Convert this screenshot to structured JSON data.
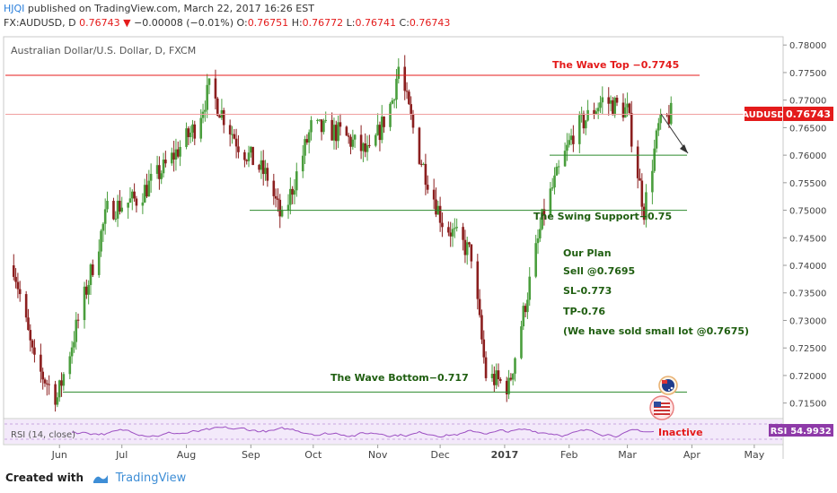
{
  "header": {
    "user": "HJQI",
    "published": "published on TradingView.com, March 22, 2017 16:26 EST",
    "symbol_line": "FX:AUDUSD, D",
    "last": "0.76743",
    "change": "−0.00008 (−0.01%)",
    "o_label": "O:",
    "o_value": "0.76751",
    "h_label": "H:",
    "h_value": "0.76772",
    "l_label": "L:",
    "l_value": "0.76741",
    "c_label": "C:",
    "c_value": "0.76743"
  },
  "footer": {
    "created_with": "Created with",
    "brand": "TradingView"
  },
  "chart_data": {
    "type": "candlestick",
    "title": "Australian Dollar/U.S. Dollar, D, FXCM",
    "ylim": [
      0.7125,
      0.7815
    ],
    "y_ticks": [
      "0.78000",
      "0.77500",
      "0.77000",
      "0.76500",
      "0.76000",
      "0.75500",
      "0.75000",
      "0.74500",
      "0.74000",
      "0.73500",
      "0.73000",
      "0.72500",
      "0.72000",
      "0.71500"
    ],
    "x_ticks": [
      "Jun",
      "Jul",
      "Aug",
      "Sep",
      "Oct",
      "Nov",
      "Dec",
      "2017",
      "Feb",
      "Mar",
      "Apr",
      "May"
    ],
    "price_path": [
      [
        "2016-05-10",
        0.74
      ],
      [
        "2016-05-20",
        0.722
      ],
      [
        "2016-05-31",
        0.716
      ],
      [
        "2016-06-10",
        0.73
      ],
      [
        "2016-06-24",
        0.75
      ],
      [
        "2016-07-08",
        0.752
      ],
      [
        "2016-07-22",
        0.758
      ],
      [
        "2016-08-05",
        0.765
      ],
      [
        "2016-08-12",
        0.772
      ],
      [
        "2016-08-26",
        0.762
      ],
      [
        "2016-09-09",
        0.756
      ],
      [
        "2016-09-16",
        0.748
      ],
      [
        "2016-09-30",
        0.765
      ],
      [
        "2016-10-14",
        0.764
      ],
      [
        "2016-10-28",
        0.76
      ],
      [
        "2016-11-08",
        0.77
      ],
      [
        "2016-11-11",
        0.776
      ],
      [
        "2016-11-21",
        0.76
      ],
      [
        "2016-12-02",
        0.748
      ],
      [
        "2016-12-16",
        0.742
      ],
      [
        "2016-12-23",
        0.72
      ],
      [
        "2017-01-03",
        0.718
      ],
      [
        "2017-01-12",
        0.735
      ],
      [
        "2017-01-20",
        0.75
      ],
      [
        "2017-02-03",
        0.764
      ],
      [
        "2017-02-17",
        0.77
      ],
      [
        "2017-03-01",
        0.768
      ],
      [
        "2017-03-09",
        0.75
      ],
      [
        "2017-03-16",
        0.765
      ],
      [
        "2017-03-22",
        0.7674
      ]
    ],
    "rsi": {
      "label": "RSI (14, close)",
      "value": "54.9932",
      "tag": "RSI"
    },
    "last_price": {
      "label": "AUDUSD",
      "value": "0.76743",
      "price": 0.76743
    },
    "levels": [
      {
        "name": "The Wave Top",
        "price": 0.7745,
        "label": "The Wave Top −0.7745",
        "color": "#e41b1b"
      },
      {
        "name": "The Swing Support",
        "price": 0.75,
        "label": "The Swing Support−0.75",
        "color": "#2b8a2b"
      },
      {
        "name": "The Wave Bottom",
        "price": 0.717,
        "label": "The Wave Bottom−0.717",
        "color": "#2b8a2b"
      },
      {
        "name": "Target",
        "price": 0.76,
        "label": "",
        "color": "#2b8a2b"
      }
    ],
    "annotations": {
      "plan_title": "Our Plan",
      "plan_lines": [
        "Sell @0.7695",
        "SL-0.773",
        "TP-0.76",
        "(We have sold small lot @0.7675)"
      ],
      "inactive": "Inactive"
    }
  },
  "colors": {
    "up": "#4a9e3d",
    "down": "#8b1e1e",
    "red_level": "#e41b1b",
    "green_level": "#2b8a2b",
    "text_green": "#1f5e10",
    "rsi_line": "#9c4fc2"
  }
}
